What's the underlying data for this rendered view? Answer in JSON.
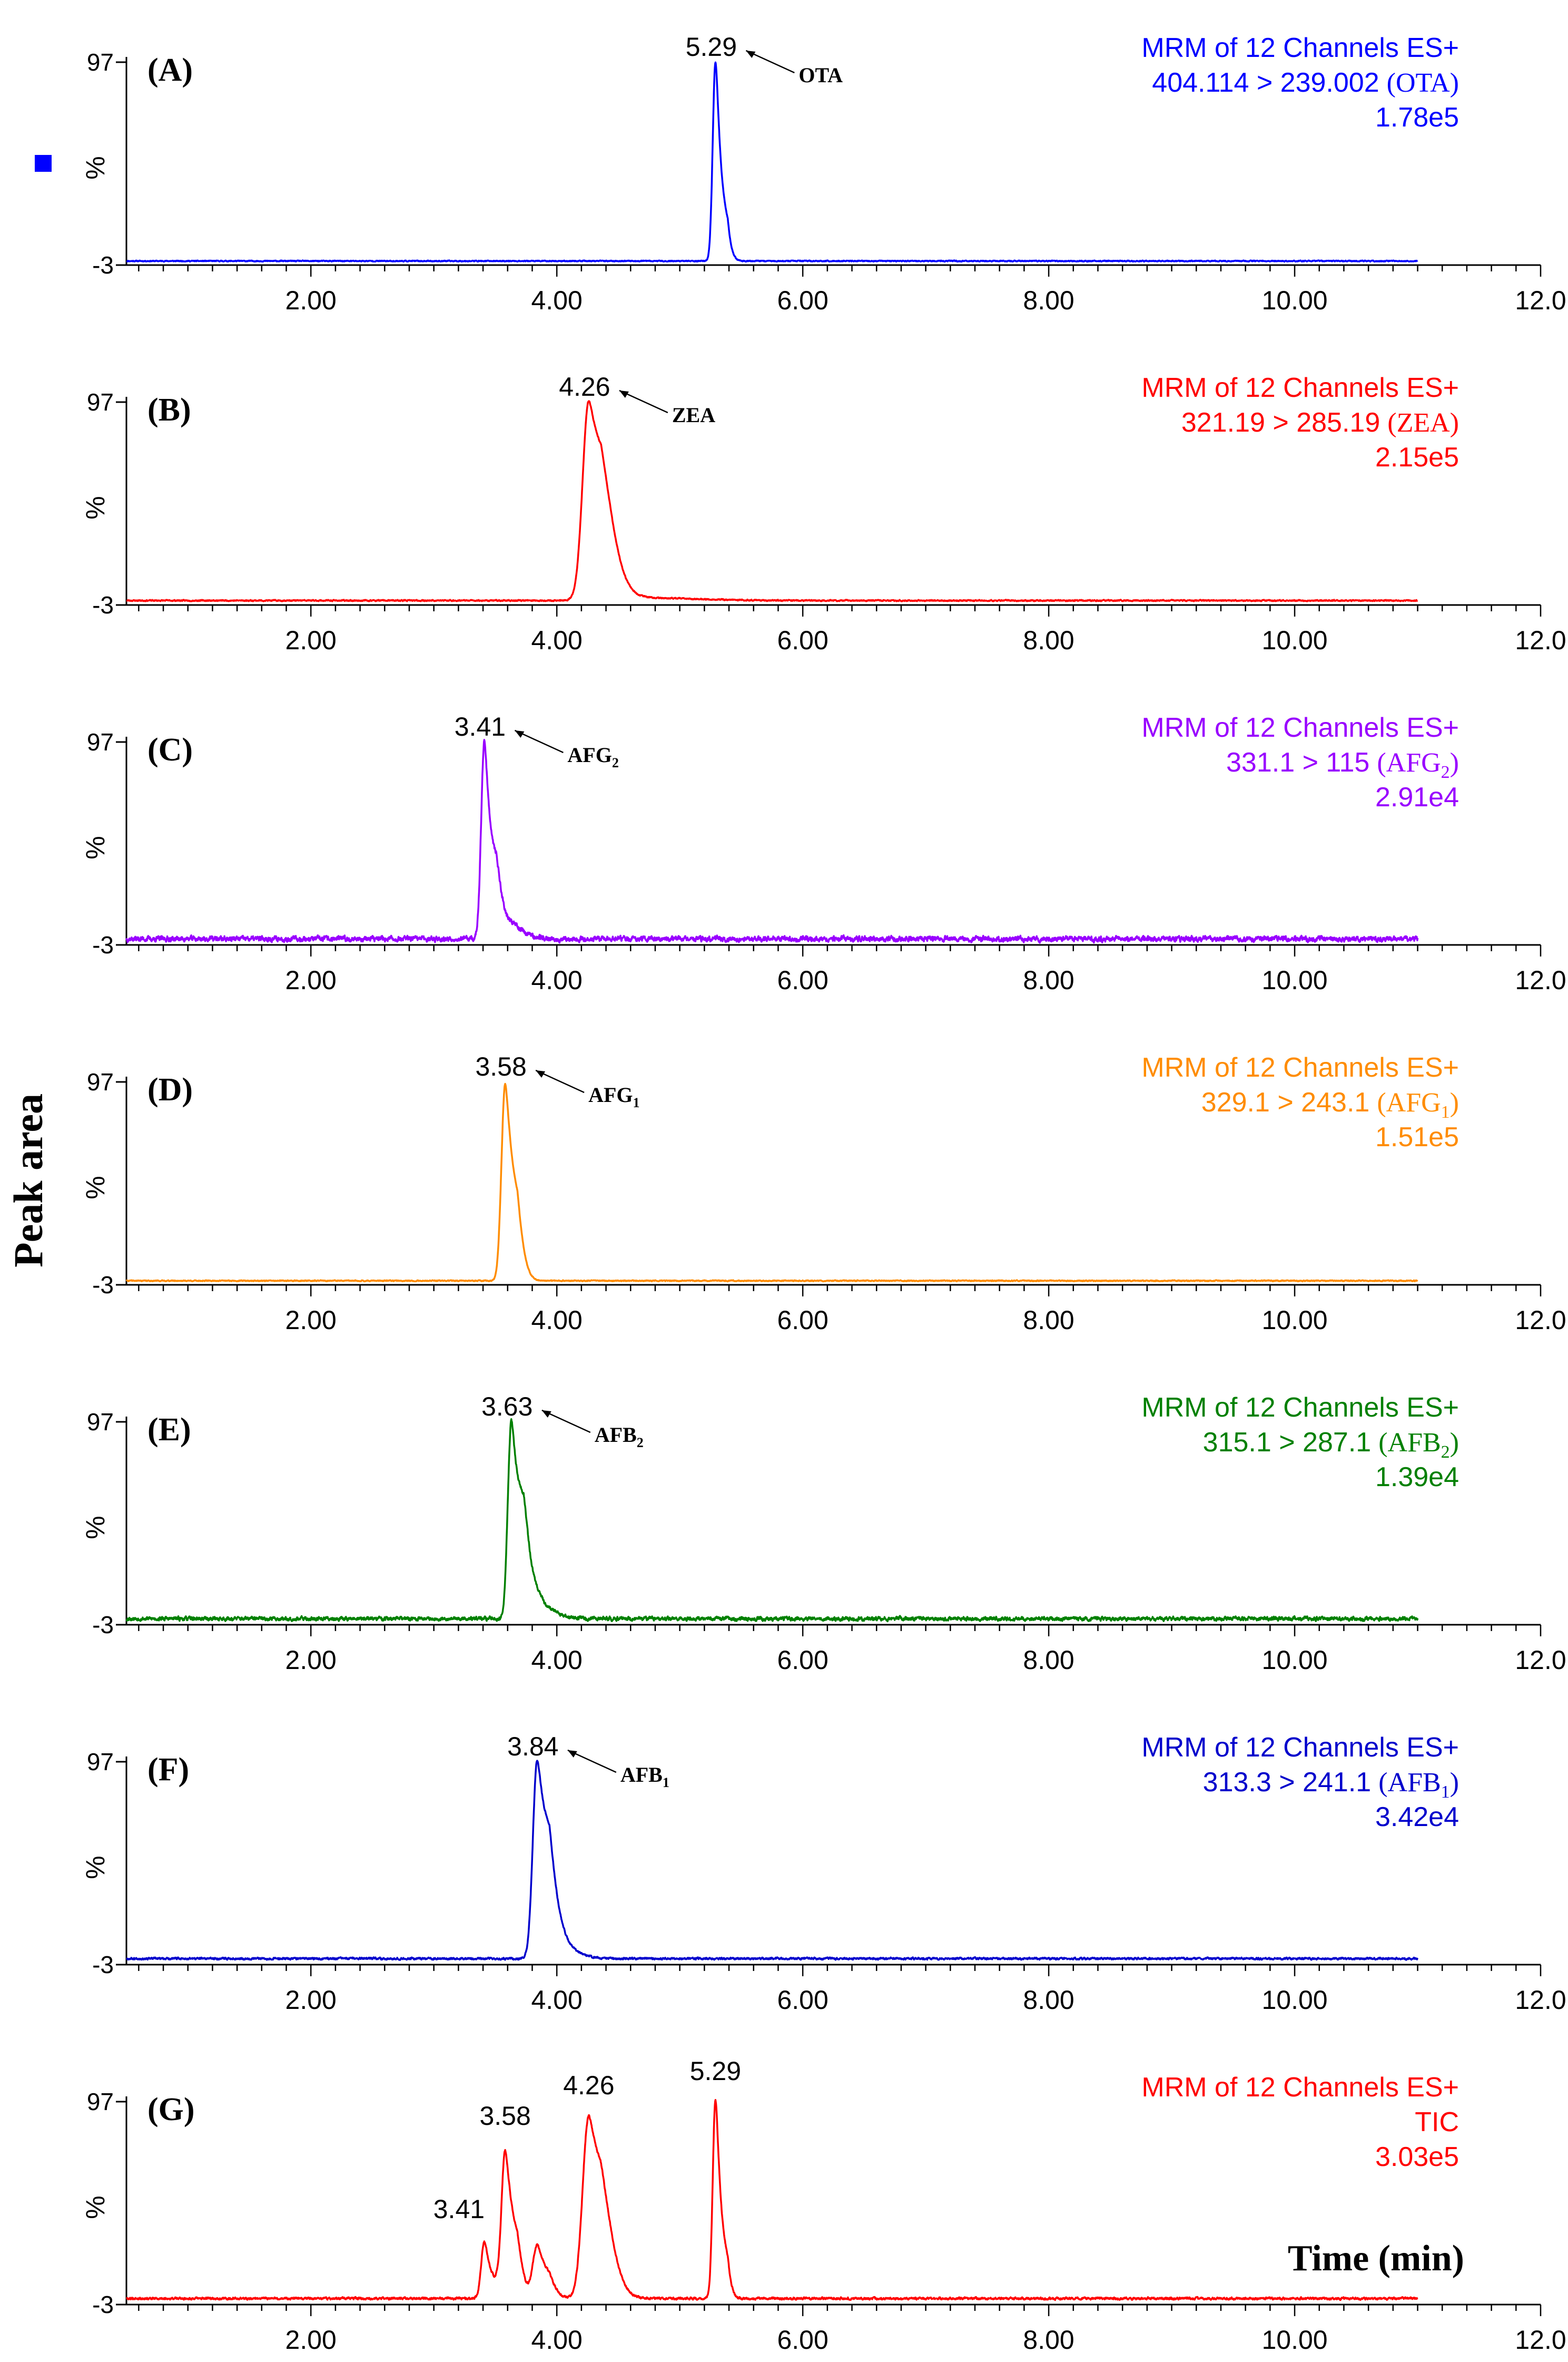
{
  "figure": {
    "ylabel": "Peak area",
    "xlabel": "Time (min)",
    "marker_color": "#0000ff"
  },
  "chart_data": [
    {
      "type": "line",
      "panel": "(A)",
      "color": "#0000ff",
      "title_line1": "MRM of 12 Channels ES+",
      "transition": "404.114 > 239.002",
      "analyte": "OTA",
      "analyte_sub": "",
      "intensity": "1.78e5",
      "peak_label": "5.29",
      "peak_rt": 5.29,
      "ylabel": "%",
      "yticks": [
        "97",
        "-3"
      ],
      "ylim": [
        -3,
        97
      ],
      "xlim": [
        0.5,
        12.0
      ],
      "xticks": [
        "2.00",
        "4.00",
        "6.00",
        "8.00",
        "10.00",
        "12.0"
      ],
      "baseline": -1,
      "x_end": 11.0,
      "peaks": [
        {
          "rt": 5.29,
          "height": 98,
          "sigma": 0.022,
          "tail": 0.035
        }
      ],
      "noise": 0.4,
      "seed": 11
    },
    {
      "type": "line",
      "panel": "(B)",
      "color": "#ff0000",
      "title_line1": "MRM of 12 Channels ES+",
      "transition": "321.19 > 285.19",
      "analyte": "ZEA",
      "analyte_sub": "",
      "intensity": "2.15e5",
      "peak_label": "4.26",
      "peak_rt": 4.26,
      "ylabel": "%",
      "yticks": [
        "97",
        "-3"
      ],
      "ylim": [
        -3,
        97
      ],
      "xlim": [
        0.5,
        12.0
      ],
      "xticks": [
        "2.00",
        "4.00",
        "6.00",
        "8.00",
        "10.00",
        "12.0"
      ],
      "baseline": -0.8,
      "x_end": 11.0,
      "peaks": [
        {
          "rt": 4.26,
          "height": 98,
          "sigma": 0.05,
          "tail": 0.09
        },
        {
          "rt": 4.55,
          "height": 1.5,
          "sigma": 0.2,
          "tail": 0.3
        }
      ],
      "noise": 0.5,
      "seed": 23
    },
    {
      "type": "line",
      "panel": "(C)",
      "color": "#9900ff",
      "title_line1": "MRM of 12 Channels ES+",
      "transition": "331.1 > 115",
      "analyte": "AFG",
      "analyte_sub": "2",
      "intensity": "2.91e4",
      "peak_label": "3.41",
      "peak_rt": 3.41,
      "ylabel": "%",
      "yticks": [
        "97",
        "-3"
      ],
      "ylim": [
        -3,
        97
      ],
      "xlim": [
        0.5,
        12.0
      ],
      "xticks": [
        "2.00",
        "4.00",
        "6.00",
        "8.00",
        "10.00",
        "12.0"
      ],
      "baseline": 0,
      "x_end": 11.0,
      "peaks": [
        {
          "rt": 3.41,
          "height": 97,
          "sigma": 0.025,
          "tail": 0.045
        },
        {
          "rt": 3.55,
          "height": 10,
          "sigma": 0.05,
          "tail": 0.08
        }
      ],
      "noise": 2.2,
      "seed": 37
    },
    {
      "type": "line",
      "panel": "(D)",
      "color": "#ff8c00",
      "title_line1": "MRM of 12 Channels ES+",
      "transition": "329.1 > 243.1",
      "analyte": "AFG",
      "analyte_sub": "1",
      "intensity": "1.51e5",
      "peak_label": "3.58",
      "peak_rt": 3.58,
      "ylabel": "%",
      "yticks": [
        "97",
        "-3"
      ],
      "ylim": [
        -3,
        97
      ],
      "xlim": [
        0.5,
        12.0
      ],
      "xticks": [
        "2.00",
        "4.00",
        "6.00",
        "8.00",
        "10.00",
        "12.0"
      ],
      "baseline": -1,
      "x_end": 11.0,
      "peaks": [
        {
          "rt": 3.58,
          "height": 97,
          "sigma": 0.03,
          "tail": 0.05
        }
      ],
      "noise": 0.4,
      "seed": 41
    },
    {
      "type": "line",
      "panel": "(E)",
      "color": "#008000",
      "title_line1": "MRM of 12 Channels ES+",
      "transition": "315.1 > 287.1",
      "analyte": "AFB",
      "analyte_sub": "2",
      "intensity": "1.39e4",
      "peak_label": "3.63",
      "peak_rt": 3.63,
      "ylabel": "%",
      "yticks": [
        "97",
        "-3"
      ],
      "ylim": [
        -3,
        97
      ],
      "xlim": [
        0.5,
        12.0
      ],
      "xticks": [
        "2.00",
        "4.00",
        "6.00",
        "8.00",
        "10.00",
        "12.0"
      ],
      "baseline": 0,
      "x_end": 11.0,
      "peaks": [
        {
          "rt": 3.63,
          "height": 97,
          "sigma": 0.028,
          "tail": 0.06
        },
        {
          "rt": 3.75,
          "height": 12,
          "sigma": 0.05,
          "tail": 0.1
        }
      ],
      "noise": 1.6,
      "seed": 53
    },
    {
      "type": "line",
      "panel": "(F)",
      "color": "#0000cc",
      "title_line1": "MRM of 12 Channels ES+",
      "transition": "313.3 > 241.1",
      "analyte": "AFB",
      "analyte_sub": "1",
      "intensity": "3.42e4",
      "peak_label": "3.84",
      "peak_rt": 3.84,
      "ylabel": "%",
      "yticks": [
        "97",
        "-3"
      ],
      "ylim": [
        -3,
        97
      ],
      "xlim": [
        0.5,
        12.0
      ],
      "xticks": [
        "2.00",
        "4.00",
        "6.00",
        "8.00",
        "10.00",
        "12.0"
      ],
      "baseline": 0,
      "x_end": 11.0,
      "peaks": [
        {
          "rt": 3.84,
          "height": 97,
          "sigma": 0.035,
          "tail": 0.06
        },
        {
          "rt": 3.95,
          "height": 10,
          "sigma": 0.05,
          "tail": 0.1
        }
      ],
      "noise": 0.8,
      "seed": 67
    },
    {
      "type": "line",
      "panel": "(G)",
      "color": "#ff0000",
      "title_line1": "MRM of 12 Channels ES+",
      "transition": "TIC",
      "analyte": "",
      "analyte_sub": "",
      "intensity": "3.03e5",
      "peak_label": "",
      "peak_rt": null,
      "ylabel": "%",
      "yticks": [
        "97",
        "-3"
      ],
      "ylim": [
        -3,
        97
      ],
      "xlim": [
        0.5,
        12.0
      ],
      "xticks": [
        "2.00",
        "4.00",
        "6.00",
        "8.00",
        "10.00",
        "12.0"
      ],
      "baseline": 0,
      "x_end": 11.0,
      "peaks": [
        {
          "rt": 3.41,
          "height": 28,
          "sigma": 0.025,
          "tail": 0.04
        },
        {
          "rt": 3.58,
          "height": 72,
          "sigma": 0.03,
          "tail": 0.05
        },
        {
          "rt": 3.84,
          "height": 26,
          "sigma": 0.035,
          "tail": 0.05
        },
        {
          "rt": 4.26,
          "height": 90,
          "sigma": 0.05,
          "tail": 0.08
        },
        {
          "rt": 5.29,
          "height": 98,
          "sigma": 0.022,
          "tail": 0.035
        }
      ],
      "peak_labels": [
        {
          "text": "3.41",
          "rt": 3.41,
          "y": 36
        },
        {
          "text": "3.58",
          "rt": 3.58,
          "y": 82
        },
        {
          "text": "4.26",
          "rt": 4.26,
          "y": 97
        },
        {
          "text": "5.29",
          "rt": 5.29,
          "y": 104
        }
      ],
      "noise": 0.9,
      "seed": 79
    }
  ]
}
